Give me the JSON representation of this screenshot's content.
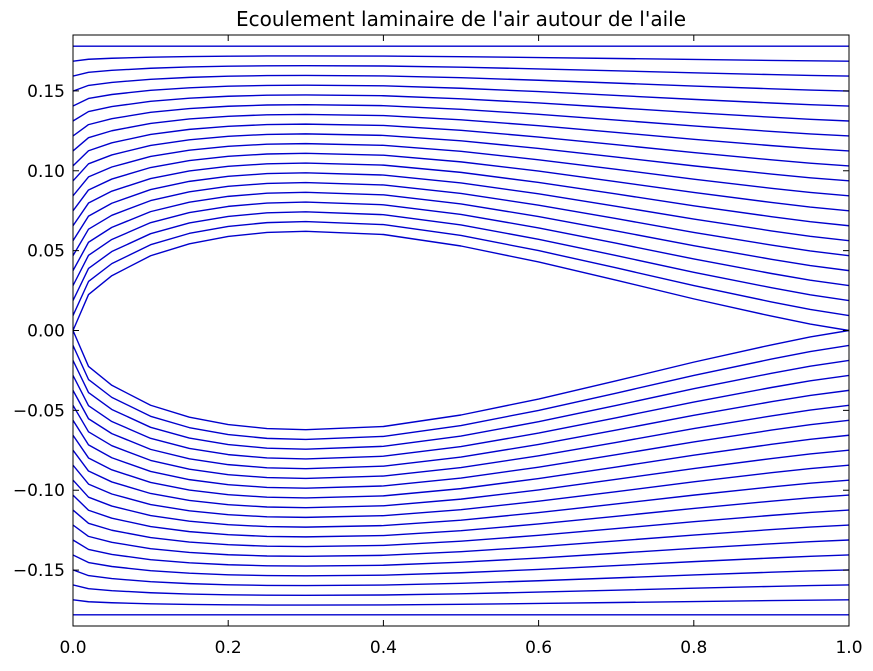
{
  "chart_data": {
    "type": "line",
    "title": "Ecoulement laminaire de l'air autour de l'aile",
    "xlabel": "",
    "ylabel": "",
    "xlim": [
      0.0,
      1.0
    ],
    "ylim": [
      -0.185,
      0.185
    ],
    "x_ticks": [
      "0.0",
      "0.2",
      "0.4",
      "0.6",
      "0.8",
      "1.0"
    ],
    "y_ticks": [
      "0.15",
      "0.10",
      "0.05",
      "0.00",
      "−0.05",
      "−0.10",
      "−0.15"
    ],
    "grid": false,
    "legend": "none",
    "line_color": "#0000cc",
    "x": [
      0.0,
      0.02,
      0.05,
      0.1,
      0.15,
      0.2,
      0.25,
      0.3,
      0.4,
      0.5,
      0.6,
      0.7,
      0.8,
      0.9,
      0.95,
      1.0
    ],
    "wing_thickness": [
      0.0,
      0.0225,
      0.0343,
      0.0468,
      0.0543,
      0.0589,
      0.0614,
      0.0621,
      0.0601,
      0.0529,
      0.0429,
      0.0315,
      0.0198,
      0.009,
      0.004,
      0.0
    ],
    "streamline_count_per_side": 20,
    "far_field_y": 0.178
  }
}
